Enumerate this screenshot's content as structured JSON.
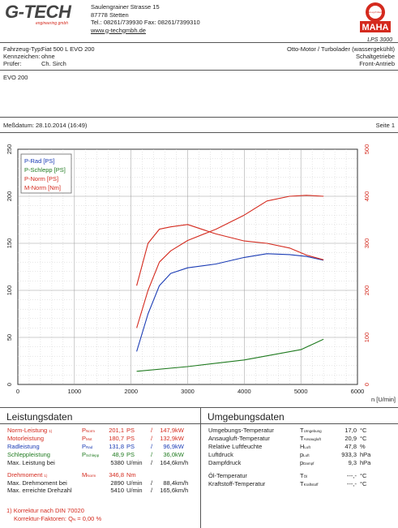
{
  "header": {
    "logo_text": "G-TECH",
    "logo_tagline": "engineering gmbh",
    "address_lines": [
      "Saulengrainer Strasse 15",
      "87778 Stetten",
      "Tel.: 08261/739930 Fax: 08261/7399310"
    ],
    "website": "www.g-techgmbh.de",
    "maha_seal": "Fahrzeug-Prüftechnik",
    "maha_logo": "MAHA",
    "maha_model": "LPS 3000"
  },
  "vehicle": {
    "rows": [
      {
        "label": "Fahrzeug-Typ:",
        "value": "Fiat 500 L EVO 200"
      },
      {
        "label": "Kennzeichen:",
        "value": "ohne"
      },
      {
        "label": "Prüfer:",
        "value": "Ch. Sirch"
      }
    ],
    "right_lines": [
      "Otto-Motor / Turbolader (wassergekühlt)",
      "Schaltgetriebe",
      "Front-Antrieb"
    ],
    "note": "EVO 200"
  },
  "meta": {
    "date_label": "Meßdatum: 28.10.2014 (16:49)",
    "page_label": "Seite 1"
  },
  "legend": [
    {
      "label": "P-Rad [PS]",
      "color": "#1a3bb4"
    },
    {
      "label": "P-Schlepp [PS]",
      "color": "#1f7a1f"
    },
    {
      "label": "P-Norm [PS]",
      "color": "#d42a1e"
    },
    {
      "label": "M-Norm [Nm]",
      "color": "#d42a1e"
    }
  ],
  "chart_data": {
    "type": "line",
    "xlabel": "n [U/min]",
    "xlim": [
      0,
      6000
    ],
    "x_ticks": [
      "0",
      "1000",
      "2000",
      "3000",
      "4000",
      "5000",
      "6000"
    ],
    "ylim_left": [
      0,
      250
    ],
    "y_ticks_left": [
      "0",
      "50",
      "100",
      "150",
      "200",
      "250"
    ],
    "ylim_right": [
      0,
      500
    ],
    "y_ticks_right": [
      "0",
      "100",
      "200",
      "300",
      "400",
      "500"
    ],
    "grid": true,
    "legend_position": "top-left",
    "series": [
      {
        "name": "P-Rad [PS]",
        "axis": "left",
        "color": "#1a3bb4",
        "x": [
          2100,
          2300,
          2500,
          2700,
          3000,
          3500,
          4000,
          4400,
          4800,
          5100,
          5400
        ],
        "y": [
          35,
          75,
          105,
          118,
          124,
          128,
          135,
          139,
          138,
          136,
          132
        ]
      },
      {
        "name": "P-Schlepp [PS]",
        "axis": "left",
        "color": "#1f7a1f",
        "x": [
          2100,
          3000,
          4000,
          5000,
          5400
        ],
        "y": [
          14,
          19,
          26,
          37,
          48
        ]
      },
      {
        "name": "P-Norm [PS]",
        "axis": "left",
        "color": "#d42a1e",
        "x": [
          2100,
          2300,
          2500,
          2700,
          3000,
          3500,
          4000,
          4400,
          4800,
          5100,
          5400
        ],
        "y": [
          60,
          100,
          130,
          142,
          153,
          165,
          180,
          195,
          200,
          201,
          200
        ]
      },
      {
        "name": "M-Norm [Nm]",
        "axis": "right",
        "color": "#d42a1e",
        "x": [
          2100,
          2300,
          2500,
          2700,
          3000,
          3500,
          4000,
          4400,
          4800,
          5100,
          5400
        ],
        "y": [
          210,
          300,
          330,
          335,
          340,
          320,
          305,
          300,
          290,
          275,
          265
        ]
      }
    ]
  },
  "performance": {
    "title": "Leistungsdaten",
    "rows": [
      {
        "label": "Norm-Leistung",
        "sup": "1)",
        "sym": "P",
        "symsub": "Norm",
        "v1": "201,1",
        "u1": "PS",
        "sep": "/",
        "v2": "147,9",
        "u2": "kW",
        "cls": "red"
      },
      {
        "label": "Motorleistung",
        "sup": "",
        "sym": "P",
        "symsub": "Mot",
        "v1": "180,7",
        "u1": "PS",
        "sep": "/",
        "v2": "132,9",
        "u2": "kW",
        "cls": "red"
      },
      {
        "label": "Radleistung",
        "sup": "",
        "sym": "P",
        "symsub": "Rad",
        "v1": "131,8",
        "u1": "PS",
        "sep": "/",
        "v2": "96,9",
        "u2": "kW",
        "cls": "blu"
      },
      {
        "label": "Schleppleistung",
        "sup": "",
        "sym": "P",
        "symsub": "Schlepp",
        "v1": "48,9",
        "u1": "PS",
        "sep": "/",
        "v2": "36,0",
        "u2": "kW",
        "cls": "grn"
      },
      {
        "label": "Max. Leistung bei",
        "sup": "",
        "sym": "",
        "symsub": "",
        "v1": "5380",
        "u1": "U/min",
        "sep": "/",
        "v2": "164,6",
        "u2": "km/h",
        "cls": ""
      },
      {
        "label": "Drehmoment",
        "sup": "1)",
        "sym": "M",
        "symsub": "Norm",
        "v1": "346,8",
        "u1": "Nm",
        "sep": "",
        "v2": "",
        "u2": "",
        "cls": "red"
      },
      {
        "label": "Max. Drehmoment bei",
        "sup": "",
        "sym": "",
        "symsub": "",
        "v1": "2890",
        "u1": "U/min",
        "sep": "/",
        "v2": "88,4",
        "u2": "km/h",
        "cls": ""
      },
      {
        "label": "Max. erreichte Drehzahl",
        "sup": "",
        "sym": "",
        "symsub": "",
        "v1": "5410",
        "u1": "U/min",
        "sep": "/",
        "v2": "165,6",
        "u2": "km/h",
        "cls": ""
      }
    ],
    "footnote1": "1) Korrektur nach DIN 70020",
    "footnote2": "Korrektur-Faktoren: Q",
    "footnote2_sub": "N",
    "footnote2_value": "=  0,00 %"
  },
  "environment": {
    "title": "Umgebungsdaten",
    "rows": [
      {
        "label": "Umgebungs-Temperatur",
        "sym": "T",
        "symsub": "Umgebung",
        "value": "17,0",
        "unit": "°C"
      },
      {
        "label": "Ansaugluft-Temperatur",
        "sym": "T",
        "symsub": "Ansaugluft",
        "value": "20,9",
        "unit": "°C"
      },
      {
        "label": "Relative Luftfeuchte",
        "sym": "H",
        "symsub": "Luft",
        "value": "47,8",
        "unit": "%"
      },
      {
        "label": "Luftdruck",
        "sym": "p",
        "symsub": "Luft",
        "value": "933,3",
        "unit": "hPa"
      },
      {
        "label": "Dampfdruck",
        "sym": "p",
        "symsub": "Dampf",
        "value": "9,3",
        "unit": "hPa"
      },
      {
        "label": "Öl-Temperatur",
        "sym": "T",
        "symsub": "Öl",
        "value": "---,-",
        "unit": "°C"
      },
      {
        "label": "Kraftstoff-Temperatur",
        "sym": "T",
        "symsub": "Kraftstoff",
        "value": "---,-",
        "unit": "°C"
      }
    ]
  }
}
